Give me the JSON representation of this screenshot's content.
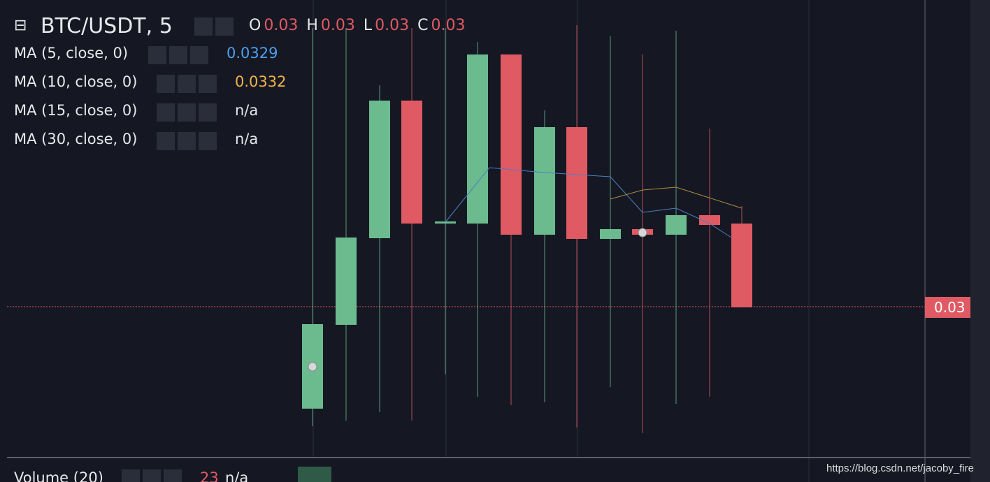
{
  "header": {
    "symbol": "BTC/USDT, 5",
    "ohlc": [
      {
        "label": "O",
        "value": "0.03"
      },
      {
        "label": "H",
        "value": "0.03"
      },
      {
        "label": "L",
        "value": "0.03"
      },
      {
        "label": "C",
        "value": "0.03"
      }
    ]
  },
  "indicators": [
    {
      "name": "MA (5, close, 0)",
      "value": "0.0329"
    },
    {
      "name": "MA (10, close, 0)",
      "value": "0.0332"
    },
    {
      "name": "MA (15, close, 0)",
      "value": "n/a"
    },
    {
      "name": "MA (30, close, 0)",
      "value": "n/a"
    }
  ],
  "price_tag": "0.03",
  "volume": {
    "name": "Volume (20)",
    "period_value": "23",
    "value": "n/a"
  },
  "watermark": "https://blog.csdn.net/jacoby_fire"
}
